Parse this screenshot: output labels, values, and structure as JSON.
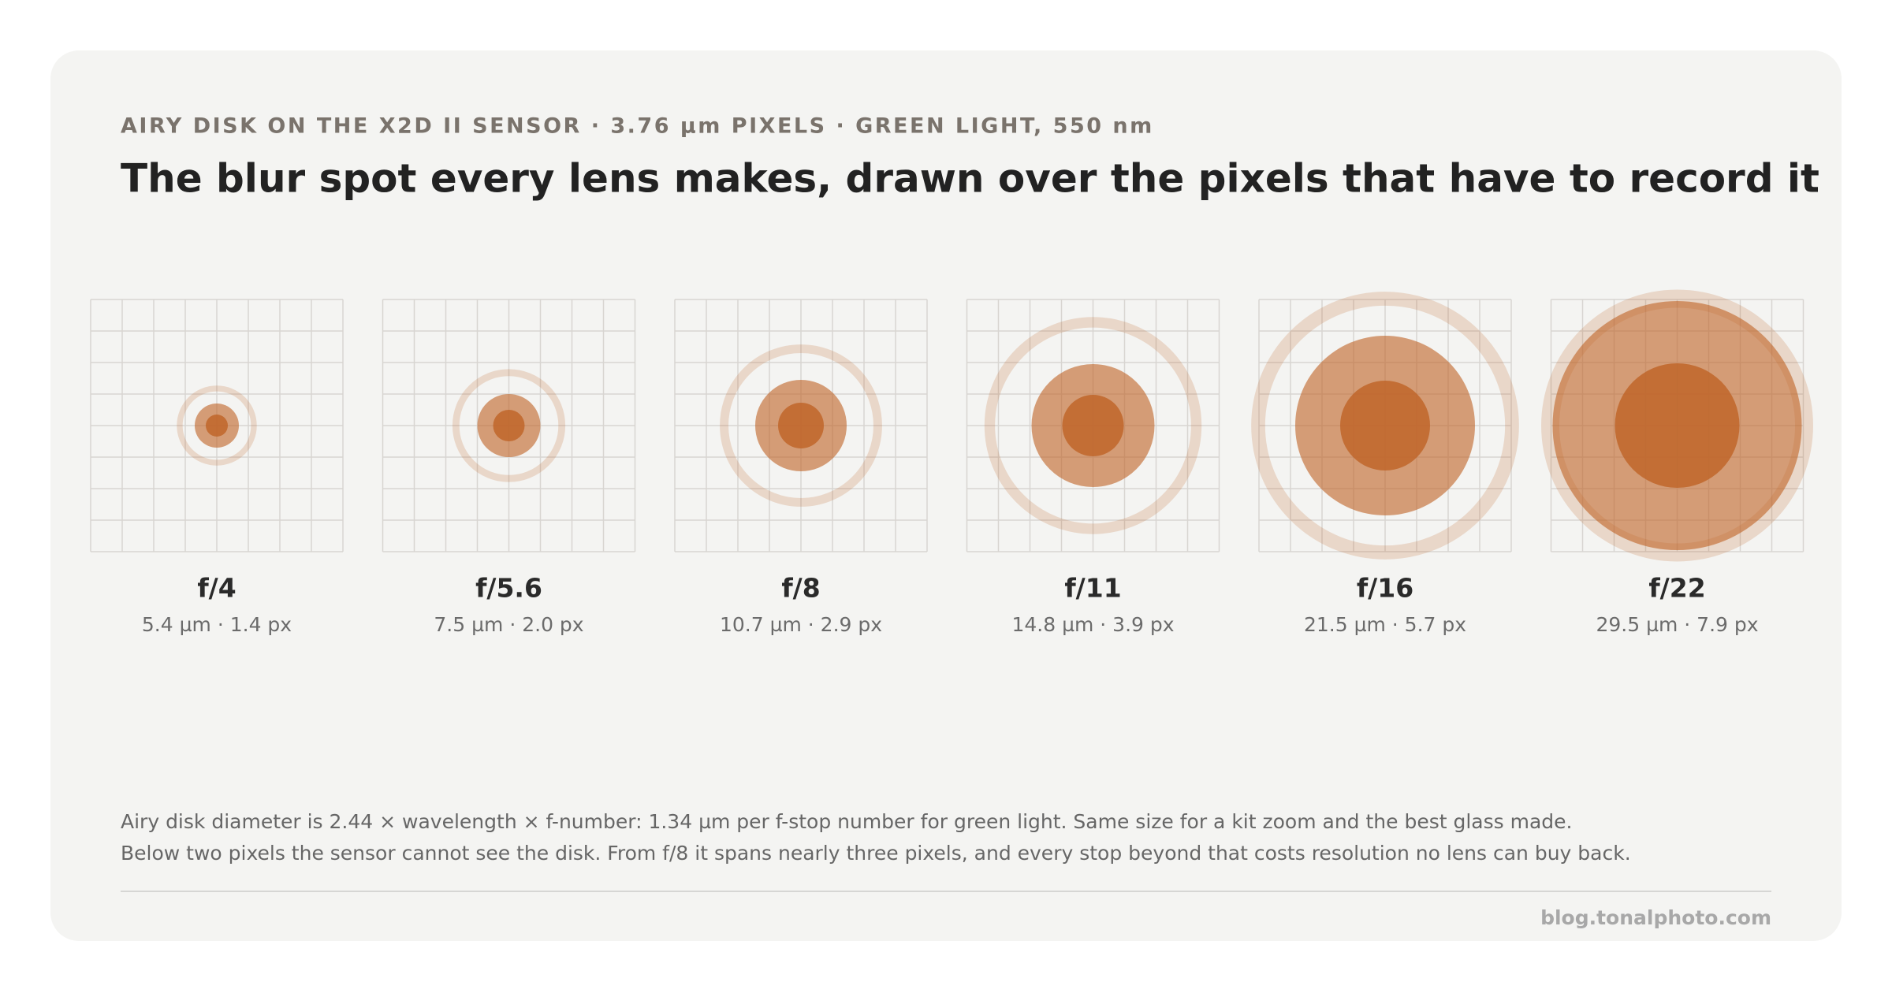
{
  "chart_data": {
    "type": "airy",
    "subtitle": "AIRY DISK ON THE X2D II SENSOR · 3.76 µm PIXELS · GREEN LIGHT, 550 nm",
    "title": "The blur spot every lens makes, drawn over the pixels that have to record it",
    "categories": [
      "f/4",
      "f/5.6",
      "f/8",
      "f/11",
      "f/16",
      "f/22"
    ],
    "values": [
      1.4,
      2.0,
      2.9,
      3.9,
      5.7,
      7.9
    ],
    "value_labels": [
      "5.4 µm · 1.4 px",
      "7.5 µm · 2.0 px",
      "10.7 µm · 2.9 px",
      "14.8 µm · 3.9 px",
      "21.5 µm · 5.7 px",
      "29.5 µm · 7.9 px"
    ],
    "color": "#c0662a",
    "notes": [
      "Airy disk diameter is 2.44 × wavelength × f-number: 1.34 µm per f-stop number for green light. Same size for a kit zoom and the best glass made.",
      "Below two pixels the sensor cannot see the disk. From f/8 it spans nearly three pixels, and every stop beyond that costs resolution no lens can buy back."
    ],
    "source": "blog.tonalphoto.com"
  }
}
